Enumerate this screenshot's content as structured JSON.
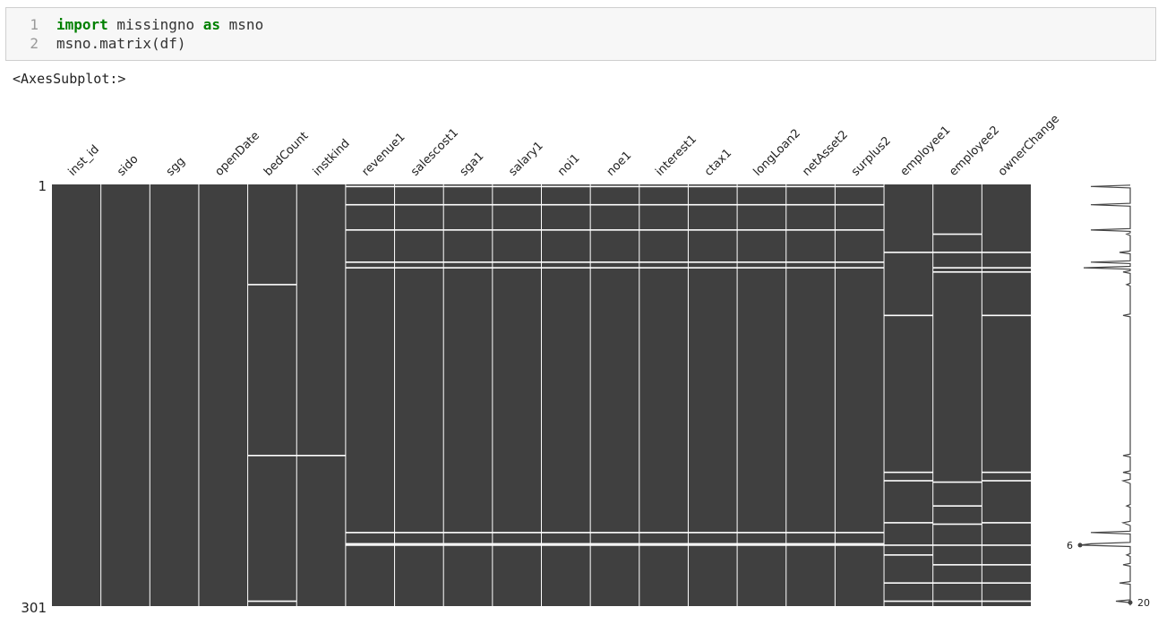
{
  "code": {
    "line_numbers": [
      1,
      2
    ],
    "lines": [
      [
        {
          "text": "import",
          "keyword": true
        },
        {
          "text": " missingno ",
          "keyword": false
        },
        {
          "text": "as",
          "keyword": true
        },
        {
          "text": " msno",
          "keyword": false
        }
      ],
      [
        {
          "text": "msno.matrix(df)",
          "keyword": false
        }
      ]
    ]
  },
  "output_text": "<AxesSubplot:>",
  "chart_data": {
    "type": "missing-matrix",
    "ylim": [
      1,
      301
    ],
    "yticks": [
      1,
      301
    ],
    "fill_color": "#404040",
    "gap_color": "#ffffff",
    "series": [
      {
        "name": "inst_id",
        "missing_rows": []
      },
      {
        "name": "sido",
        "missing_rows": []
      },
      {
        "name": "sgg",
        "missing_rows": []
      },
      {
        "name": "openDate",
        "missing_rows": []
      },
      {
        "name": "bedCount",
        "missing_rows": [
          72,
          194,
          298
        ]
      },
      {
        "name": "instkind",
        "missing_rows": [
          194
        ]
      },
      {
        "name": "revenue1",
        "missing_rows": [
          2,
          15,
          33,
          56,
          60,
          249,
          257,
          258
        ]
      },
      {
        "name": "salescost1",
        "missing_rows": [
          2,
          15,
          33,
          56,
          60,
          249,
          257,
          258
        ]
      },
      {
        "name": "sga1",
        "missing_rows": [
          2,
          15,
          33,
          56,
          60,
          249,
          257,
          258
        ]
      },
      {
        "name": "salary1",
        "missing_rows": [
          2,
          15,
          33,
          56,
          60,
          249,
          257,
          258
        ]
      },
      {
        "name": "noi1",
        "missing_rows": [
          2,
          15,
          33,
          56,
          60,
          249,
          257,
          258
        ]
      },
      {
        "name": "noe1",
        "missing_rows": [
          2,
          15,
          33,
          56,
          60,
          249,
          257,
          258
        ]
      },
      {
        "name": "interest1",
        "missing_rows": [
          2,
          15,
          33,
          56,
          60,
          249,
          257,
          258
        ]
      },
      {
        "name": "ctax1",
        "missing_rows": [
          2,
          15,
          33,
          56,
          60,
          249,
          257,
          258
        ]
      },
      {
        "name": "longLoan2",
        "missing_rows": [
          2,
          15,
          33,
          56,
          60,
          249,
          257,
          258
        ]
      },
      {
        "name": "netAsset2",
        "missing_rows": [
          2,
          15,
          33,
          56,
          60,
          249,
          257,
          258
        ]
      },
      {
        "name": "surplus2",
        "missing_rows": [
          2,
          15,
          33,
          56,
          60,
          249,
          257,
          258
        ]
      },
      {
        "name": "employee1",
        "missing_rows": [
          49,
          94,
          206,
          212,
          242,
          258,
          265,
          285,
          298
        ]
      },
      {
        "name": "employee2",
        "missing_rows": [
          36,
          49,
          60,
          63,
          213,
          230,
          243,
          258,
          272,
          285,
          298
        ]
      },
      {
        "name": "ownerChange",
        "missing_rows": [
          49,
          60,
          63,
          94,
          206,
          212,
          242,
          258,
          272,
          285,
          298
        ]
      }
    ],
    "sparkline_labels": [
      {
        "value": 6,
        "row": 258
      },
      {
        "value": 20,
        "row": 301
      }
    ]
  }
}
